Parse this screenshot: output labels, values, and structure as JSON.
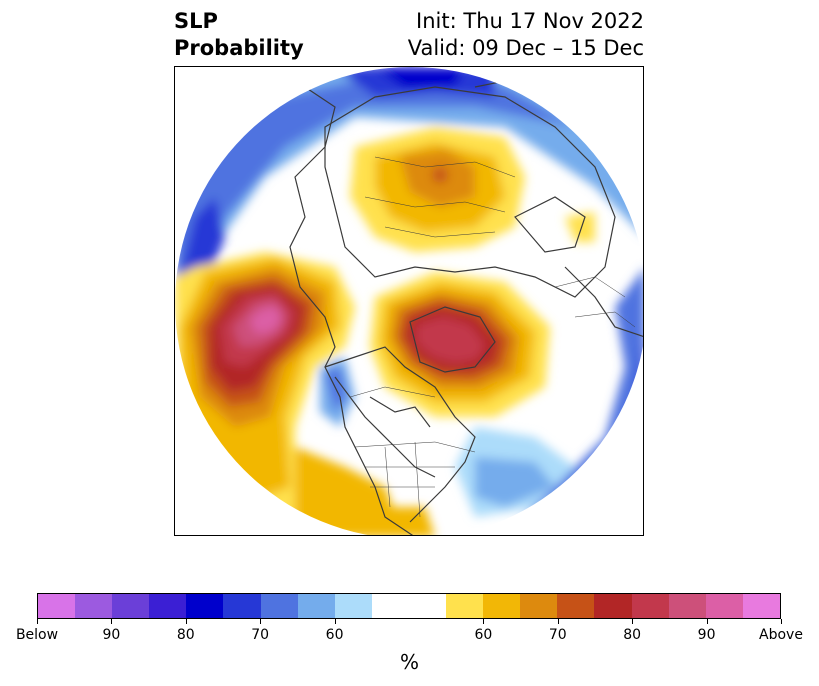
{
  "title": {
    "left_line1": "SLP",
    "left_line2": "Probability",
    "right_line1": "Init: Thu 17 Nov 2022",
    "right_line2": "Valid: 09 Dec – 15 Dec"
  },
  "map": {
    "projection": "north-polar-stereographic",
    "features": [
      "coastlines",
      "country-borders",
      "us-state-borders"
    ],
    "anomaly_regions": [
      {
        "name": "arctic-russia",
        "category": "below",
        "level": "70-80"
      },
      {
        "name": "siberia",
        "category": "above",
        "level": "60-80"
      },
      {
        "name": "north-pacific",
        "category": "above",
        "level": "90-above"
      },
      {
        "name": "greenland",
        "category": "above",
        "level": "80-90"
      },
      {
        "name": "north-atlantic",
        "category": "below",
        "level": "70-80"
      },
      {
        "name": "eastern-north-america",
        "category": "below",
        "level": "60-70"
      }
    ]
  },
  "colorbar": {
    "colors": [
      "#d873e8",
      "#9c5ae0",
      "#6b3fd8",
      "#3b1fd4",
      "#0000cc",
      "#2638d6",
      "#4f73e0",
      "#74acec",
      "#acdcfa",
      "#ffffff",
      "#ffe14d",
      "#f2b706",
      "#dd8a0e",
      "#c65217",
      "#b22626",
      "#c2384c",
      "#cd507a",
      "#dc5fa6",
      "#e87adf"
    ],
    "ticks": [
      "Below",
      "90",
      "80",
      "70",
      "60",
      "60",
      "70",
      "80",
      "90",
      "Above"
    ],
    "unit": "%"
  }
}
